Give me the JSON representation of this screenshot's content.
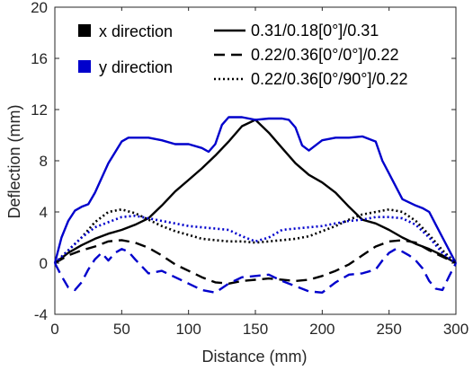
{
  "chart_data": {
    "type": "line",
    "xlabel": "Distance (mm)",
    "ylabel": "Deflection (mm)",
    "xlim": [
      0,
      300
    ],
    "ylim": [
      -4,
      20
    ],
    "xticks": [
      0,
      50,
      100,
      150,
      200,
      250,
      300
    ],
    "yticks": [
      -4,
      0,
      4,
      8,
      12,
      16,
      20
    ],
    "grid": false,
    "legend_position": "top",
    "color_legend": [
      {
        "label": "x direction",
        "color": "#000000"
      },
      {
        "label": "y direction",
        "color": "#0000CC"
      }
    ],
    "style_legend": [
      {
        "label": "0.31/0.18[0°]/0.31",
        "dash": "solid"
      },
      {
        "label": "0.22/0.36[0°/0°]/0.22",
        "dash": "dashed"
      },
      {
        "label": "0.22/0.36[0°/90°]/0.22",
        "dash": "dotted"
      }
    ],
    "series": [
      {
        "direction": "x",
        "laminate": "0.31/0.18[0°]/0.31",
        "color": "#000000",
        "dash": "solid",
        "x": [
          0,
          10,
          20,
          30,
          40,
          50,
          60,
          70,
          80,
          90,
          100,
          110,
          120,
          130,
          140,
          150,
          160,
          170,
          180,
          190,
          200,
          210,
          220,
          230,
          240,
          250,
          260,
          270,
          280,
          290,
          300
        ],
        "y": [
          0,
          0.8,
          1.4,
          1.9,
          2.3,
          2.6,
          3.0,
          3.5,
          4.5,
          5.6,
          6.5,
          7.4,
          8.4,
          9.5,
          10.7,
          11.2,
          10.2,
          9.0,
          7.8,
          6.9,
          6.3,
          5.5,
          4.4,
          3.4,
          3.1,
          2.6,
          2.0,
          1.5,
          1.1,
          0.6,
          0
        ]
      },
      {
        "direction": "y",
        "laminate": "0.31/0.18[0°]/0.31",
        "color": "#0000CC",
        "dash": "solid",
        "x": [
          0,
          5,
          10,
          15,
          20,
          25,
          30,
          40,
          50,
          55,
          60,
          70,
          80,
          90,
          100,
          110,
          115,
          120,
          125,
          130,
          140,
          150,
          160,
          170,
          175,
          180,
          185,
          190,
          200,
          210,
          220,
          230,
          240,
          245,
          250,
          260,
          270,
          275,
          280,
          285,
          290,
          295,
          300
        ],
        "y": [
          0,
          2.0,
          3.3,
          4.1,
          4.4,
          4.6,
          5.5,
          7.8,
          9.5,
          9.8,
          9.8,
          9.8,
          9.6,
          9.3,
          9.3,
          9.0,
          8.7,
          9.3,
          10.8,
          11.4,
          11.4,
          11.2,
          11.3,
          11.3,
          11.2,
          10.6,
          9.2,
          8.8,
          9.6,
          9.8,
          9.8,
          9.9,
          9.5,
          8.0,
          7.0,
          5.0,
          4.5,
          4.3,
          4.0,
          3.0,
          2.0,
          1.0,
          0
        ]
      },
      {
        "direction": "x",
        "laminate": "0.22/0.36[0°/0°]/0.22",
        "color": "#000000",
        "dash": "dashed",
        "x": [
          0,
          10,
          20,
          30,
          40,
          50,
          60,
          70,
          80,
          90,
          100,
          110,
          120,
          130,
          140,
          150,
          160,
          170,
          180,
          190,
          200,
          210,
          220,
          230,
          240,
          250,
          260,
          270,
          280,
          290,
          300
        ],
        "y": [
          0,
          0.6,
          1.0,
          1.3,
          1.7,
          1.8,
          1.6,
          1.2,
          0.6,
          -0.1,
          -0.6,
          -1.1,
          -1.5,
          -1.6,
          -1.4,
          -1.3,
          -1.2,
          -1.3,
          -1.4,
          -1.3,
          -1.0,
          -0.6,
          -0.1,
          0.6,
          1.3,
          1.7,
          1.8,
          1.6,
          1.0,
          0.5,
          0
        ]
      },
      {
        "direction": "y",
        "laminate": "0.22/0.36[0°/0°]/0.22",
        "color": "#0000CC",
        "dash": "dashed",
        "x": [
          0,
          5,
          10,
          15,
          20,
          25,
          30,
          35,
          40,
          45,
          50,
          55,
          60,
          70,
          80,
          90,
          100,
          110,
          120,
          130,
          140,
          150,
          160,
          170,
          180,
          190,
          200,
          210,
          220,
          230,
          240,
          245,
          250,
          255,
          260,
          265,
          270,
          275,
          280,
          285,
          290,
          295,
          300
        ],
        "y": [
          0,
          -1.0,
          -1.9,
          -2.1,
          -1.5,
          -0.5,
          0.3,
          0.8,
          0.2,
          0.8,
          1.1,
          0.9,
          0.3,
          -0.8,
          -0.6,
          -1.1,
          -1.6,
          -2.1,
          -2.3,
          -1.6,
          -1.1,
          -1.0,
          -0.9,
          -1.4,
          -1.8,
          -2.2,
          -2.3,
          -1.5,
          -0.9,
          -0.8,
          -0.5,
          0.2,
          0.8,
          1.1,
          0.9,
          0.6,
          0.2,
          -0.4,
          -1.4,
          -2.0,
          -2.1,
          -1.0,
          0
        ]
      },
      {
        "direction": "x",
        "laminate": "0.22/0.36[0°/90°]/0.22",
        "color": "#000000",
        "dash": "dotted",
        "x": [
          0,
          10,
          20,
          30,
          40,
          50,
          60,
          70,
          80,
          90,
          100,
          110,
          120,
          130,
          140,
          150,
          160,
          170,
          180,
          190,
          200,
          210,
          220,
          230,
          240,
          250,
          260,
          270,
          280,
          290,
          300
        ],
        "y": [
          0,
          1.0,
          2.0,
          3.2,
          4.0,
          4.2,
          3.9,
          3.4,
          2.9,
          2.5,
          2.2,
          1.9,
          1.8,
          1.7,
          1.7,
          1.6,
          1.7,
          1.8,
          1.9,
          2.1,
          2.5,
          2.9,
          3.4,
          3.8,
          4.0,
          4.2,
          4.0,
          3.3,
          2.2,
          1.0,
          0
        ]
      },
      {
        "direction": "y",
        "laminate": "0.22/0.36[0°/90°]/0.22",
        "color": "#0000CC",
        "dash": "dotted",
        "x": [
          0,
          10,
          20,
          30,
          40,
          50,
          60,
          70,
          80,
          90,
          100,
          110,
          120,
          130,
          140,
          150,
          160,
          170,
          180,
          190,
          200,
          210,
          220,
          230,
          240,
          250,
          260,
          270,
          280,
          290,
          300
        ],
        "y": [
          0,
          1.0,
          2.0,
          2.8,
          3.2,
          3.6,
          3.7,
          3.5,
          3.3,
          3.1,
          2.9,
          2.8,
          2.7,
          2.6,
          2.1,
          1.7,
          2.0,
          2.6,
          2.7,
          2.8,
          2.9,
          3.1,
          3.3,
          3.4,
          3.6,
          3.6,
          3.5,
          3.0,
          2.0,
          0.8,
          0
        ]
      }
    ]
  }
}
